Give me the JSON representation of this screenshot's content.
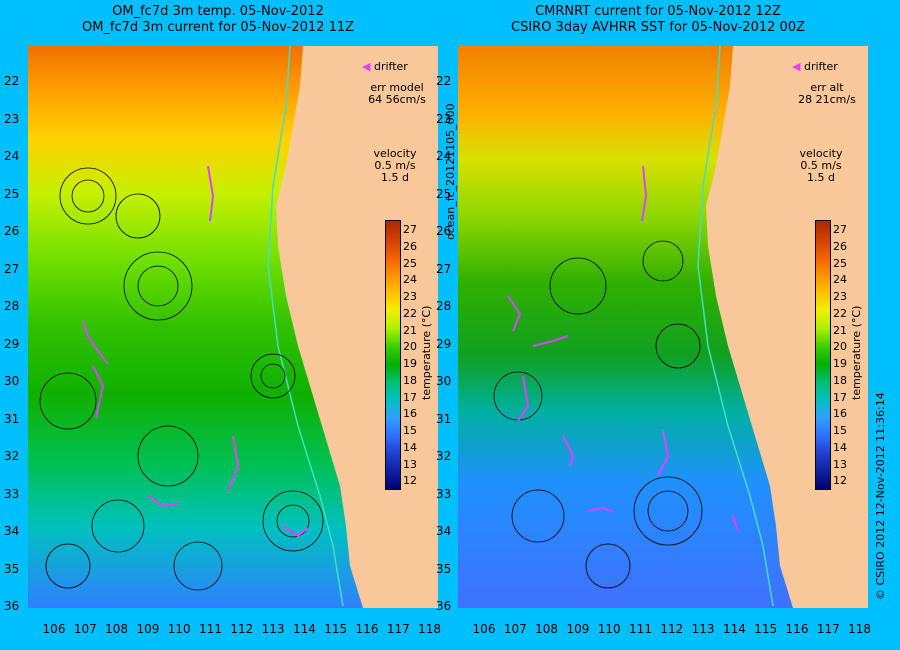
{
  "left": {
    "title1": "OM_fc7d 3m temp. 05-Nov-2012",
    "title2": "OM_fc7d 3m current for 05-Nov-2012 11Z",
    "err_label": "err model",
    "err_value": "64 56cm/s",
    "velocity_label": "velocity",
    "velocity_scale": "0.5 m/s",
    "velocity_time": "1.5 d",
    "drifter_label": "drifter"
  },
  "right": {
    "title1": "CMRNRT current for 05-Nov-2012 12Z",
    "title2": "CSIRO 3day AVHRR SST for 05-Nov-2012 00Z",
    "err_label": "err alt",
    "err_value": "28 21cm/s",
    "velocity_label": "velocity",
    "velocity_scale": "0.5 m/s",
    "velocity_time": "1.5 d",
    "drifter_label": "drifter"
  },
  "colorbar": {
    "title": "temperature (°C)",
    "labels": [
      "27",
      "26",
      "25",
      "24",
      "23",
      "22",
      "21",
      "20",
      "19",
      "18",
      "17",
      "16",
      "15",
      "14",
      "13",
      "12"
    ],
    "colors": [
      "#a52a00",
      "#d04000",
      "#f06000",
      "#ff9000",
      "#ffc000",
      "#f0f000",
      "#b0f000",
      "#40d000",
      "#00b000",
      "#00c070",
      "#00c0c0",
      "#30a0ff",
      "#3070ff",
      "#2040d0",
      "#1020a0",
      "#000070"
    ]
  },
  "latitudes": [
    "22",
    "23",
    "24",
    "25",
    "26",
    "27",
    "28",
    "29",
    "30",
    "31",
    "32",
    "33",
    "34",
    "35",
    "36"
  ],
  "longitudes": [
    "106",
    "107",
    "108",
    "109",
    "110",
    "111",
    "112",
    "113",
    "114",
    "115",
    "116",
    "117",
    "118"
  ],
  "colors": {
    "background": "#00bfff",
    "land": "#f9c89a",
    "drifter": "#e040ff",
    "shelf": "#40e0c0"
  },
  "side_text_mid": "ocean_fc_20121105_000",
  "side_text_right": "© CSIRO 2012  12-Nov-2012 11:36:14"
}
